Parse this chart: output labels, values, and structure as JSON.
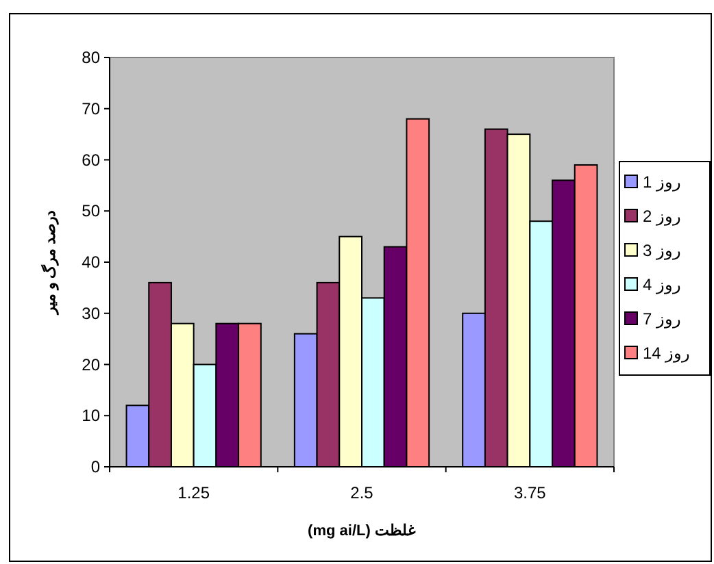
{
  "chart_data": {
    "type": "bar",
    "xlabel": "(mg ai/L) غلظت",
    "ylabel": "درصد مرگ و میر",
    "categories": [
      "1.25",
      "2.5",
      "3.75"
    ],
    "series": [
      {
        "name": "روز 1",
        "color": "#9999ff",
        "values": [
          12,
          26,
          30
        ]
      },
      {
        "name": "روز 2",
        "color": "#993366",
        "values": [
          36,
          36,
          66
        ]
      },
      {
        "name": "روز 3",
        "color": "#ffffcc",
        "values": [
          28,
          45,
          65
        ]
      },
      {
        "name": "روز 4",
        "color": "#ccffff",
        "values": [
          20,
          33,
          48
        ]
      },
      {
        "name": "روز 7",
        "color": "#660066",
        "values": [
          28,
          43,
          56
        ]
      },
      {
        "name": "روز 14",
        "color": "#ff8080",
        "values": [
          28,
          68,
          59
        ]
      }
    ],
    "ylim": [
      0,
      80
    ],
    "yticks": [
      0,
      10,
      20,
      30,
      40,
      50,
      60,
      70,
      80
    ],
    "legend": "right"
  }
}
